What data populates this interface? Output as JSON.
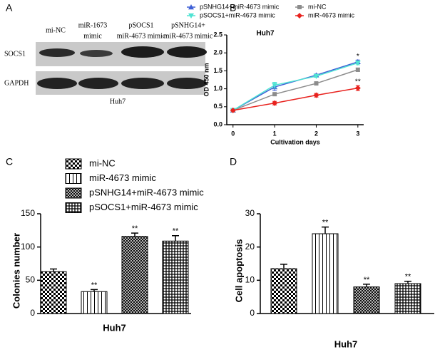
{
  "panel_labels": [
    "A",
    "B",
    "C",
    "D"
  ],
  "blot": {
    "lanes": [
      [
        "mi-NC"
      ],
      [
        "miR-1673",
        "mimic"
      ],
      [
        "pSOCS1",
        "miR-4673 mimic"
      ],
      [
        "pSNHG14+",
        "miR-4673 mimic"
      ]
    ],
    "rows": [
      "SOCS1",
      "GAPDH"
    ],
    "caption": "Huh7"
  },
  "chart_data": [
    {
      "type": "line",
      "title": "Huh7",
      "xlabel": "Cultivation days",
      "ylabel": "OD 450 nm",
      "x": [
        0,
        1,
        2,
        3
      ],
      "xlim": [
        -0.15,
        3.14
      ],
      "xticks": [
        0,
        1,
        2,
        3
      ],
      "ylim": [
        0,
        2.5
      ],
      "yticks": [
        {
          "value": 0,
          "label": "0.0"
        },
        {
          "value": 0.5,
          "label": "0.5"
        },
        {
          "value": 1,
          "label": "1.0"
        },
        {
          "value": 1.5,
          "label": "1.5"
        },
        {
          "value": 2,
          "label": "2.0"
        },
        {
          "value": 2.5,
          "label": "2.5"
        }
      ],
      "series": [
        {
          "name": "pSNHG14+miR-4673 mimic",
          "color": "#3d5fd6",
          "marker": "triangle",
          "values": [
            0.4,
            1.05,
            1.38,
            1.75
          ],
          "errors": [
            0.02,
            0.1,
            0.03,
            0.05
          ],
          "annotation": "*"
        },
        {
          "name": "mi-NC",
          "color": "#8c8c8c",
          "marker": "square",
          "values": [
            0.4,
            0.85,
            1.15,
            1.53
          ],
          "errors": [
            0.02,
            0.03,
            0.03,
            0.05
          ]
        },
        {
          "name": "pSOCS1+miR-4673 mimic",
          "color": "#4fe3d3",
          "marker": "triangle-down",
          "values": [
            0.4,
            1.1,
            1.35,
            1.72
          ],
          "errors": [
            0.02,
            0.08,
            0.03,
            0.05
          ]
        },
        {
          "name": "miR-4673 mimic",
          "color": "#e8221e",
          "marker": "diamond",
          "values": [
            0.4,
            0.6,
            0.82,
            1.02
          ],
          "errors": [
            0.02,
            0.05,
            0.05,
            0.07
          ],
          "annotation": "**"
        }
      ]
    },
    {
      "type": "bar",
      "ylabel": "Colonies number",
      "categories": [
        "Huh7"
      ],
      "ylim": [
        0,
        150
      ],
      "yticks": [
        0,
        50,
        100,
        150
      ],
      "series": [
        {
          "name": "mi-NC",
          "pattern": "checker",
          "values": [
            63
          ],
          "errors": [
            4
          ]
        },
        {
          "name": "miR-4673 mimic",
          "pattern": "vertical",
          "values": [
            33
          ],
          "errors": [
            3
          ],
          "annotation": "**"
        },
        {
          "name": "pSNHG14+miR-4673 mimic",
          "pattern": "diag-cross",
          "values": [
            116
          ],
          "errors": [
            5
          ],
          "annotation": "**"
        },
        {
          "name": "pSOCS1+miR-4673 mimic",
          "pattern": "grid",
          "values": [
            109
          ],
          "errors": [
            8
          ],
          "annotation": "**"
        }
      ]
    },
    {
      "type": "bar",
      "ylabel": "Cell apoptosis",
      "categories": [
        "Huh7"
      ],
      "ylim": [
        0,
        30
      ],
      "yticks": [
        0,
        10,
        20,
        30
      ],
      "series": [
        {
          "pattern": "checker",
          "values": [
            13.5
          ],
          "errors": [
            1.3
          ]
        },
        {
          "pattern": "vertical",
          "values": [
            24
          ],
          "errors": [
            2
          ],
          "annotation": "**"
        },
        {
          "pattern": "diag-cross",
          "values": [
            8
          ],
          "errors": [
            0.8
          ],
          "annotation": "**"
        },
        {
          "pattern": "grid",
          "values": [
            9
          ],
          "errors": [
            0.7
          ],
          "annotation": "**"
        }
      ]
    }
  ]
}
